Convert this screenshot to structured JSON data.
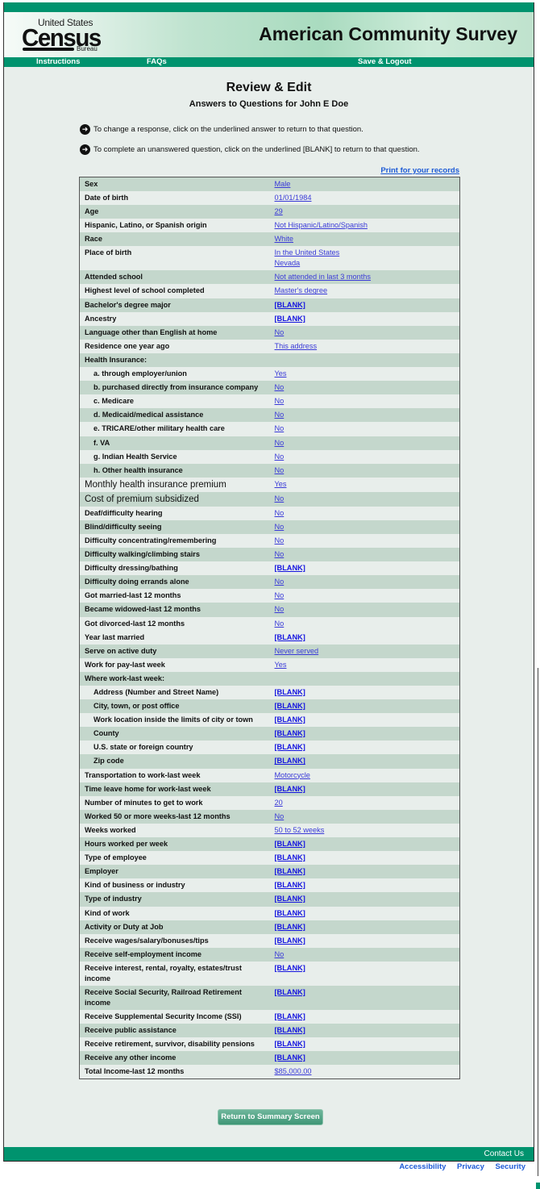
{
  "header": {
    "logo_text": "United States Census Bureau",
    "logo_us": "United States",
    "logo_census": "Census",
    "logo_bureau": "Bureau",
    "survey_title": "American Community Survey"
  },
  "nav": {
    "instructions": "Instructions",
    "faqs": "FAQs",
    "save_logout": "Save & Logout"
  },
  "page": {
    "title": "Review & Edit",
    "subtitle": "Answers to Questions for John E Doe",
    "instructions": [
      "To change a response, click on the underlined answer to return to that question.",
      "To complete an unanswered question, click on the underlined [BLANK] to return to that question."
    ],
    "print_link": "Print for your records"
  },
  "colors": {
    "brand_green": "#00936e",
    "row_dark": "#c4d7cc",
    "row_light": "#e8eeeb",
    "link": "#3a3ad8"
  },
  "rows": [
    {
      "label": "Sex",
      "values": [
        "Male"
      ]
    },
    {
      "label": "Date of birth",
      "values": [
        "01/01/1984"
      ]
    },
    {
      "label": "Age",
      "values": [
        "29"
      ]
    },
    {
      "label": "Hispanic, Latino, or Spanish origin",
      "values": [
        "Not Hispanic/Latino/Spanish"
      ]
    },
    {
      "label": "Race",
      "values": [
        "White"
      ]
    },
    {
      "label": "Place of birth",
      "values": [
        "In the United States",
        "Nevada"
      ]
    },
    {
      "label": "Attended school",
      "values": [
        "Not attended in last 3 months"
      ]
    },
    {
      "label": "Highest level of school completed",
      "values": [
        "Master's degree"
      ]
    },
    {
      "label": "Bachelor's degree major",
      "values": [
        "[BLANK]"
      ]
    },
    {
      "label": "Ancestry",
      "values": [
        "[BLANK]"
      ]
    },
    {
      "label": "Language other than English at home",
      "values": [
        "No"
      ]
    },
    {
      "label": "Residence one year ago",
      "values": [
        "This address"
      ]
    },
    {
      "label": "Health Insurance:",
      "values": []
    },
    {
      "label": "a. through employer/union",
      "values": [
        "Yes"
      ],
      "indent": true
    },
    {
      "label": "b. purchased directly from insurance company",
      "values": [
        "No"
      ],
      "indent": true
    },
    {
      "label": "c. Medicare",
      "values": [
        "No"
      ],
      "indent": true
    },
    {
      "label": "d. Medicaid/medical assistance",
      "values": [
        "No"
      ],
      "indent": true
    },
    {
      "label": "e. TRICARE/other military health care",
      "values": [
        "No"
      ],
      "indent": true
    },
    {
      "label": "f. VA",
      "values": [
        "No"
      ],
      "indent": true
    },
    {
      "label": "g. Indian Health Service",
      "values": [
        "No"
      ],
      "indent": true
    },
    {
      "label": "h. Other health insurance",
      "values": [
        "No"
      ],
      "indent": true
    },
    {
      "label": "Monthly health insurance premium",
      "values": [
        "Yes"
      ],
      "plain": true
    },
    {
      "label": "Cost of premium subsidized",
      "values": [
        "No"
      ],
      "plain": true
    },
    {
      "label": "Deaf/difficulty hearing",
      "values": [
        "No"
      ]
    },
    {
      "label": "Blind/difficulty seeing",
      "values": [
        "No"
      ]
    },
    {
      "label": "Difficulty concentrating/remembering",
      "values": [
        "No"
      ]
    },
    {
      "label": "Difficulty walking/climbing stairs",
      "values": [
        "No"
      ]
    },
    {
      "label": "Difficulty dressing/bathing",
      "values": [
        "[BLANK]"
      ]
    },
    {
      "label": "Difficulty doing errands alone",
      "values": [
        "No"
      ]
    },
    {
      "label": "Got married-last 12 months",
      "values": [
        "No"
      ]
    },
    {
      "label": "Became widowed-last 12 months",
      "values": [
        "No"
      ]
    },
    {
      "label": "Got divorced-last 12 months",
      "values": [
        "No"
      ]
    },
    {
      "label": "Year last married",
      "values": [
        "[BLANK]"
      ]
    },
    {
      "label": "Serve on active duty",
      "values": [
        "Never served"
      ]
    },
    {
      "label": "Work for pay-last week",
      "values": [
        "Yes"
      ]
    },
    {
      "label": "Where work-last week:",
      "values": []
    },
    {
      "label": "Address (Number and Street Name)",
      "values": [
        "[BLANK]"
      ],
      "indent": true
    },
    {
      "label": "City, town, or post office",
      "values": [
        "[BLANK]"
      ],
      "indent": true
    },
    {
      "label": "Work location inside the limits of city or town",
      "values": [
        "[BLANK]"
      ],
      "indent": true
    },
    {
      "label": "County",
      "values": [
        "[BLANK]"
      ],
      "indent": true
    },
    {
      "label": "U.S. state or foreign country",
      "values": [
        "[BLANK]"
      ],
      "indent": true
    },
    {
      "label": "Zip code",
      "values": [
        "[BLANK]"
      ],
      "indent": true
    },
    {
      "label": "Transportation to work-last week",
      "values": [
        "Motorcycle"
      ]
    },
    {
      "label": "Time leave home for work-last week",
      "values": [
        "[BLANK]"
      ]
    },
    {
      "label": "Number of minutes to get to work",
      "values": [
        "20"
      ]
    },
    {
      "label": "Worked 50 or more weeks-last 12 months",
      "values": [
        "No"
      ]
    },
    {
      "label": "Weeks worked",
      "values": [
        "50 to 52 weeks"
      ]
    },
    {
      "label": "Hours worked per week",
      "values": [
        "[BLANK]"
      ]
    },
    {
      "label": "Type of employee",
      "values": [
        "[BLANK]"
      ]
    },
    {
      "label": "Employer",
      "values": [
        "[BLANK]"
      ]
    },
    {
      "label": "Kind of business or industry",
      "values": [
        "[BLANK]"
      ]
    },
    {
      "label": "Type of industry",
      "values": [
        "[BLANK]"
      ]
    },
    {
      "label": "Kind of work",
      "values": [
        "[BLANK]"
      ]
    },
    {
      "label": "Activity or Duty at Job",
      "values": [
        "[BLANK]"
      ]
    },
    {
      "label": "Receive wages/salary/bonuses/tips",
      "values": [
        "[BLANK]"
      ]
    },
    {
      "label": "Receive self-employment income",
      "values": [
        "No"
      ]
    },
    {
      "label": "Receive interest, rental, royalty, estates/trust income",
      "values": [
        "[BLANK]"
      ]
    },
    {
      "label": "Receive Social Security, Railroad Retirement income",
      "values": [
        "[BLANK]"
      ]
    },
    {
      "label": "Receive Supplemental Security Income (SSI)",
      "values": [
        "[BLANK]"
      ]
    },
    {
      "label": "Receive public assistance",
      "values": [
        "[BLANK]"
      ]
    },
    {
      "label": "Receive retirement, survivor, disability pensions",
      "values": [
        "[BLANK]"
      ]
    },
    {
      "label": "Receive any other income",
      "values": [
        "[BLANK]"
      ]
    },
    {
      "label": "Total Income-last 12 months",
      "values": [
        "$85,000.00"
      ]
    }
  ],
  "buttons": {
    "return": "Return to Summary Screen"
  },
  "footer": {
    "contact": "Contact Us",
    "links": [
      "Accessibility",
      "Privacy",
      "Security"
    ]
  }
}
